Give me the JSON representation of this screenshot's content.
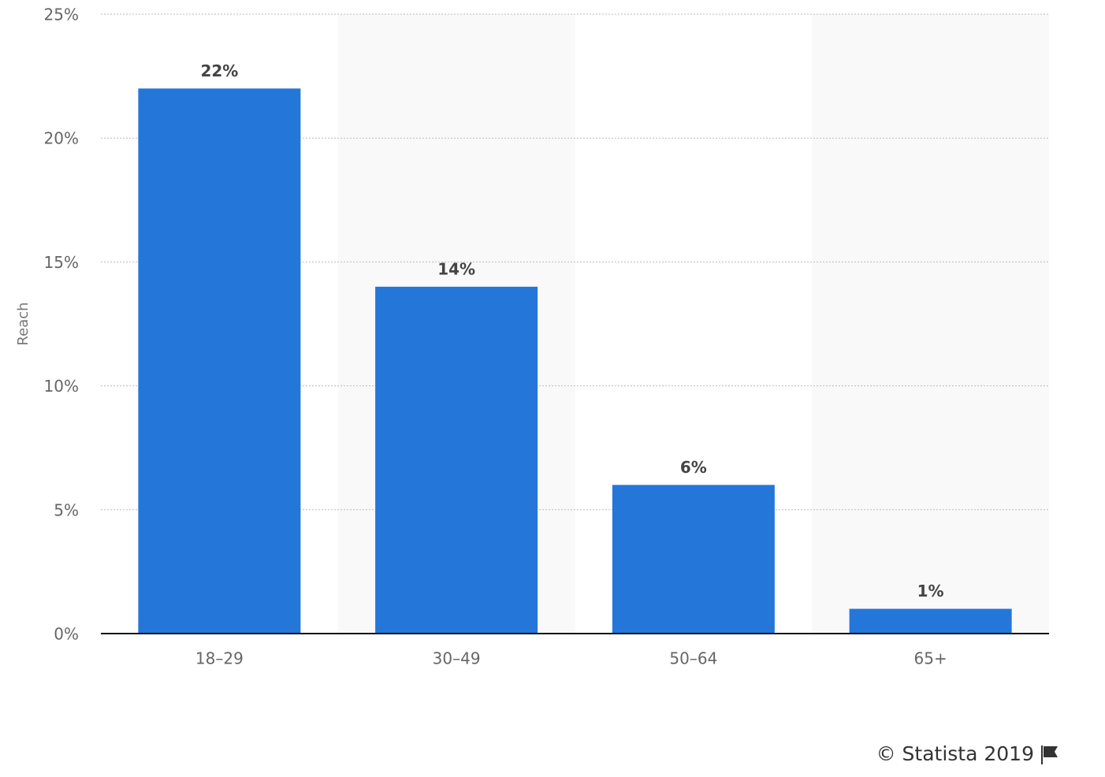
{
  "chart_data": {
    "type": "bar",
    "categories": [
      "18–29",
      "30–49",
      "50–64",
      "65+"
    ],
    "values": [
      22,
      14,
      6,
      1
    ],
    "value_labels": [
      "22%",
      "14%",
      "6%",
      "1%"
    ],
    "color": "#2476d9",
    "y_label": "Reach",
    "ylim": [
      0,
      25
    ],
    "yticks": [
      {
        "value": 0,
        "label": "0%"
      },
      {
        "value": 5,
        "label": "5%"
      },
      {
        "value": 10,
        "label": "10%"
      },
      {
        "value": 15,
        "label": "15%"
      },
      {
        "value": 20,
        "label": "20%"
      },
      {
        "value": 25,
        "label": "25%"
      }
    ],
    "grid": true,
    "credit": "© Statista 2019"
  }
}
